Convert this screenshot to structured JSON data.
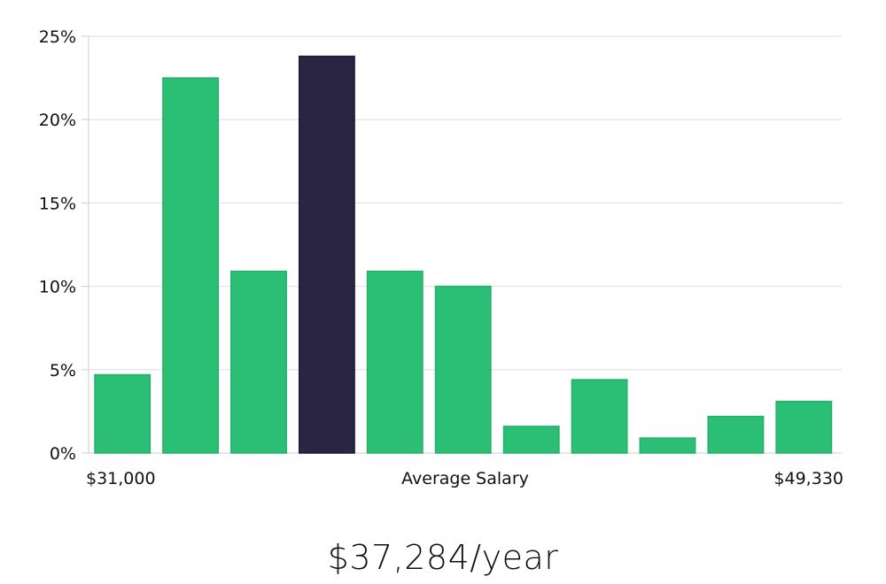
{
  "chart_data": {
    "type": "bar",
    "title": "",
    "xlabel": "Average Salary",
    "ylabel": "",
    "x_range_labels": {
      "min": "$31,000",
      "max": "$49,330"
    },
    "ylim": [
      0,
      25
    ],
    "yticks": [
      0,
      5,
      10,
      15,
      20,
      25
    ],
    "ytick_labels": [
      "0%",
      "5%",
      "10%",
      "15%",
      "20%",
      "25%"
    ],
    "grid": true,
    "highlight_index": 3,
    "values": [
      4.7,
      22.5,
      10.9,
      23.8,
      10.9,
      10.0,
      1.6,
      4.4,
      0.9,
      2.2,
      3.1
    ],
    "colors": {
      "bar": "#2bbf76",
      "highlight": "#292543",
      "grid": "#dddddd",
      "axis": "#cccccc"
    }
  },
  "salary": {
    "text": "$37,284/year"
  }
}
